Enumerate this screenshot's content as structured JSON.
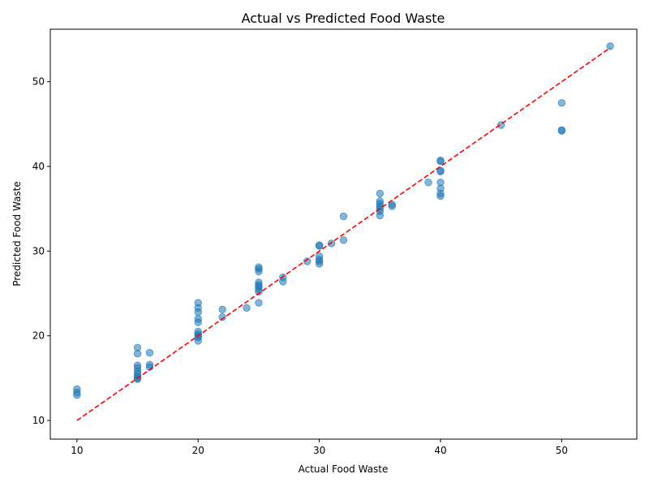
{
  "chart_data": {
    "type": "scatter",
    "title": "Actual vs Predicted Food Waste",
    "xlabel": "Actual Food Waste",
    "ylabel": "Predicted Food Waste",
    "xlim": [
      7.8,
      56.2
    ],
    "ylim": [
      7.8,
      56.2
    ],
    "x_ticks": [
      10,
      20,
      30,
      40,
      50
    ],
    "y_ticks": [
      10,
      20,
      30,
      40,
      50
    ],
    "grid": false,
    "point_color": "#1f77b4",
    "line_color": "#ff0000",
    "reference_line": {
      "style": "dashed",
      "from": [
        10,
        10
      ],
      "to": [
        54,
        54
      ]
    },
    "points": [
      [
        10,
        13.0
      ],
      [
        10,
        13.3
      ],
      [
        10,
        13.7
      ],
      [
        15,
        14.9
      ],
      [
        15,
        15.0
      ],
      [
        15,
        15.2
      ],
      [
        15,
        15.5
      ],
      [
        15,
        15.8
      ],
      [
        15,
        16.2
      ],
      [
        15,
        16.5
      ],
      [
        15,
        17.9
      ],
      [
        15,
        18.6
      ],
      [
        16,
        16.3
      ],
      [
        16,
        16.6
      ],
      [
        16,
        18.0
      ],
      [
        20,
        19.4
      ],
      [
        20,
        19.8
      ],
      [
        20,
        20.0
      ],
      [
        20,
        20.2
      ],
      [
        20,
        20.5
      ],
      [
        20,
        21.6
      ],
      [
        20,
        22.0
      ],
      [
        20,
        22.8
      ],
      [
        20,
        23.3
      ],
      [
        20,
        23.9
      ],
      [
        22,
        22.2
      ],
      [
        22,
        23.1
      ],
      [
        24,
        23.3
      ],
      [
        25,
        23.9
      ],
      [
        25,
        25.2
      ],
      [
        25,
        25.5
      ],
      [
        25,
        25.8
      ],
      [
        25,
        26.0
      ],
      [
        25,
        26.3
      ],
      [
        25,
        27.6
      ],
      [
        25,
        27.9
      ],
      [
        25,
        28.1
      ],
      [
        27,
        26.4
      ],
      [
        27,
        26.9
      ],
      [
        29,
        28.8
      ],
      [
        30,
        28.5
      ],
      [
        30,
        28.8
      ],
      [
        30,
        29.0
      ],
      [
        30,
        29.4
      ],
      [
        30,
        30.6
      ],
      [
        30,
        30.7
      ],
      [
        31,
        30.9
      ],
      [
        32,
        31.3
      ],
      [
        32,
        34.1
      ],
      [
        35,
        34.2
      ],
      [
        35,
        34.7
      ],
      [
        35,
        35.0
      ],
      [
        35,
        35.3
      ],
      [
        35,
        35.6
      ],
      [
        35,
        35.9
      ],
      [
        35,
        36.8
      ],
      [
        36,
        35.3
      ],
      [
        36,
        35.5
      ],
      [
        39,
        38.1
      ],
      [
        40,
        36.5
      ],
      [
        40,
        36.8
      ],
      [
        40,
        37.4
      ],
      [
        40,
        38.1
      ],
      [
        40,
        39.4
      ],
      [
        40,
        39.5
      ],
      [
        40,
        40.6
      ],
      [
        40,
        40.7
      ],
      [
        45,
        44.9
      ],
      [
        50,
        44.2
      ],
      [
        50,
        44.3
      ],
      [
        50,
        47.5
      ],
      [
        54,
        54.2
      ]
    ]
  }
}
